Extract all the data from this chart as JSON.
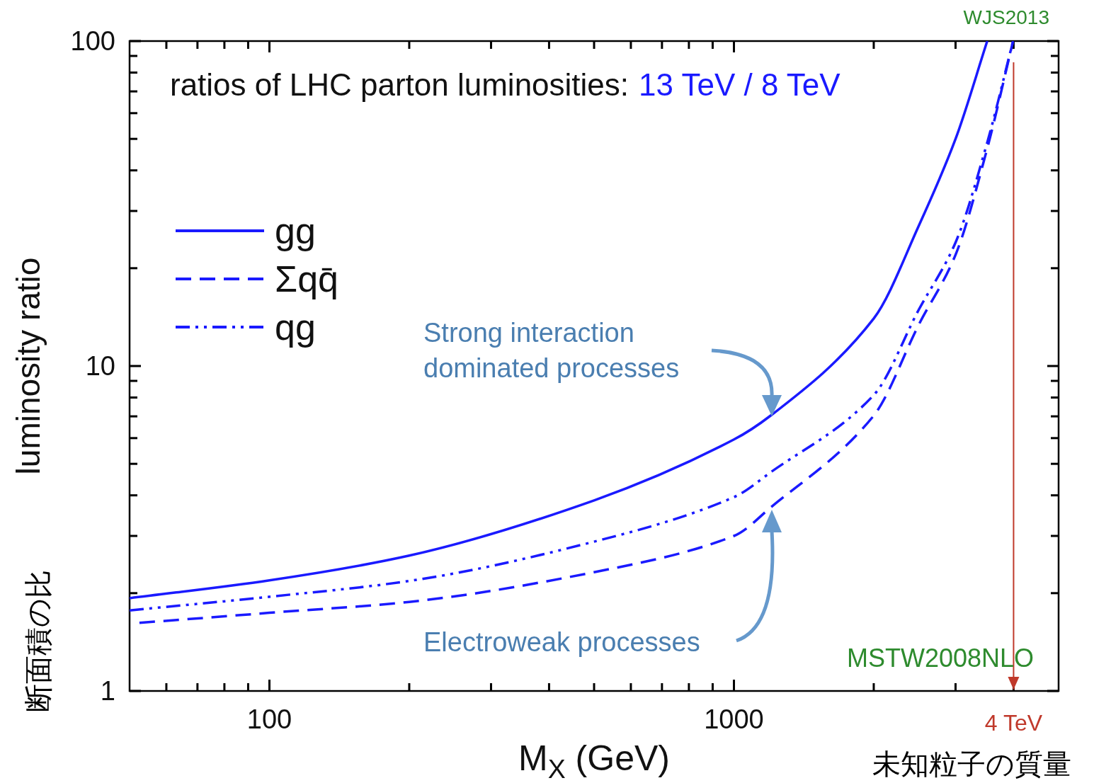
{
  "chart_data": {
    "type": "line",
    "title": "ratios of LHC parton luminosities:",
    "subtitle": "13 TeV / 8 TeV",
    "xlabel": "M$_{X}$ (GeV)",
    "ylabel": "luminosity ratio",
    "log": "xy",
    "xlim": [
      50,
      5000
    ],
    "ylim": [
      1,
      100
    ],
    "xticks": [
      {
        "value": 60,
        "label": null
      },
      {
        "value": 70,
        "label": null
      },
      {
        "value": 80,
        "label": null
      },
      {
        "value": 90,
        "label": null
      },
      100,
      {
        "value": 200,
        "label": null
      },
      {
        "value": 300,
        "label": null
      },
      {
        "value": 400,
        "label": null
      },
      {
        "value": 500,
        "label": null
      },
      {
        "value": 600,
        "label": null
      },
      {
        "value": 700,
        "label": null
      },
      {
        "value": 800,
        "label": null
      },
      {
        "value": 900,
        "label": null
      },
      1000,
      {
        "value": 2000,
        "label": null
      },
      {
        "value": 3000,
        "label": null
      },
      {
        "value": 4000,
        "label": null
      }
    ],
    "yticks": [
      1,
      {
        "value": 2,
        "label": null
      },
      {
        "value": 3,
        "label": null
      },
      {
        "value": 4,
        "label": null
      },
      {
        "value": 5,
        "label": null
      },
      {
        "value": 6,
        "label": null
      },
      {
        "value": 7,
        "label": null
      },
      {
        "value": 8,
        "label": null
      },
      {
        "value": 9,
        "label": null
      },
      10,
      {
        "value": 20,
        "label": null
      },
      {
        "value": 30,
        "label": null
      },
      {
        "value": 40,
        "label": null
      },
      {
        "value": 50,
        "label": null
      },
      {
        "value": 60,
        "label": null
      },
      {
        "value": 70,
        "label": null
      },
      {
        "value": 80,
        "label": null
      },
      {
        "value": 90,
        "label": null
      },
      100
    ],
    "grid": false,
    "legend": "top left",
    "series": [
      {
        "name": "gg",
        "color": "#1a1aff",
        "line_style": "solid",
        "x": [
          50,
          100,
          200,
          500,
          1000,
          1200,
          2000,
          2500,
          3000,
          3510
        ],
        "values": [
          1.93,
          2.19,
          2.61,
          3.86,
          5.94,
          7.04,
          14,
          27,
          50,
          100
        ]
      },
      {
        "name": "Σqq̄",
        "color": "#1a1aff",
        "line_style": "dashed",
        "x": [
          52.5,
          100,
          200,
          500,
          1000,
          1200,
          2000,
          2500,
          3000,
          3500,
          3990
        ],
        "values": [
          1.62,
          1.74,
          1.88,
          2.32,
          3.0,
          3.67,
          7.04,
          13.4,
          22,
          46,
          100
        ]
      },
      {
        "name": "qg",
        "color": "#1a1aff",
        "line_style": "dashdot",
        "x": [
          50,
          100,
          200,
          500,
          1000,
          1200,
          2000,
          2500,
          3000,
          3500,
          3990
        ],
        "values": [
          1.77,
          1.95,
          2.18,
          2.88,
          3.95,
          4.71,
          8.14,
          14.9,
          24,
          48,
          100
        ]
      }
    ],
    "ref_lines": [
      {
        "axis": "x",
        "value": 4000,
        "label": "4 TeV",
        "color": "#c0392b"
      }
    ],
    "annotations": [
      "Strong interaction\ndominated processes",
      "Electroweak processes",
      "MSTW2008NLO",
      "WJS2013",
      "断面積の比",
      "未知粒子の質量"
    ]
  }
}
